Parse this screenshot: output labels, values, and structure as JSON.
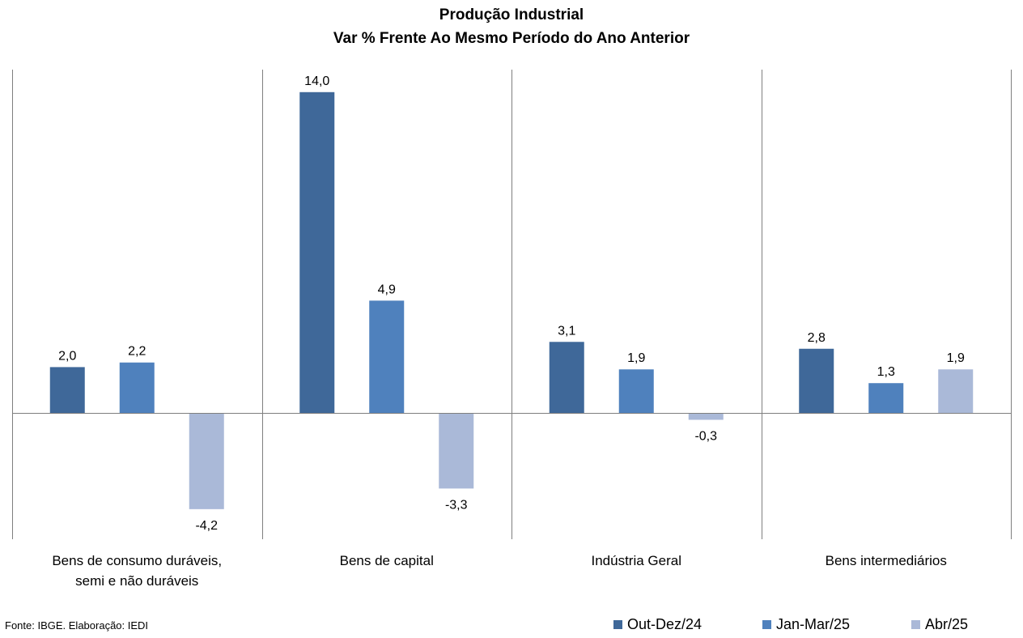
{
  "chart_data": {
    "type": "bar",
    "title": "Produção Industrial",
    "subtitle": "Var % Frente Ao Mesmo Período do Ano Anterior",
    "categories": [
      "Bens de consumo duráveis,\nsemi e não duráveis",
      "Bens de capital",
      "Indústria Geral",
      "Bens intermediários"
    ],
    "series": [
      {
        "name": "Out-Dez/24",
        "color": "#3F6899",
        "values": [
          2.0,
          14.0,
          3.1,
          2.8
        ],
        "labels": [
          "2,0",
          "14,0",
          "3,1",
          "2,8"
        ]
      },
      {
        "name": "Jan-Mar/25",
        "color": "#4F81BD",
        "values": [
          2.2,
          4.9,
          1.9,
          1.3
        ],
        "labels": [
          "2,2",
          "4,9",
          "1,9",
          "1,3"
        ]
      },
      {
        "name": "Abr/25",
        "color": "#AAB9D8",
        "values": [
          -4.2,
          -3.3,
          -0.3,
          1.9
        ],
        "labels": [
          "-4,2",
          "-3,3",
          "-0,3",
          "1,9"
        ]
      }
    ],
    "ylim": [
      -5.4,
      15.0
    ],
    "grid": false,
    "legend_position": "bottom-right",
    "source": "Fonte: IBGE. Elaboração: IEDI"
  }
}
